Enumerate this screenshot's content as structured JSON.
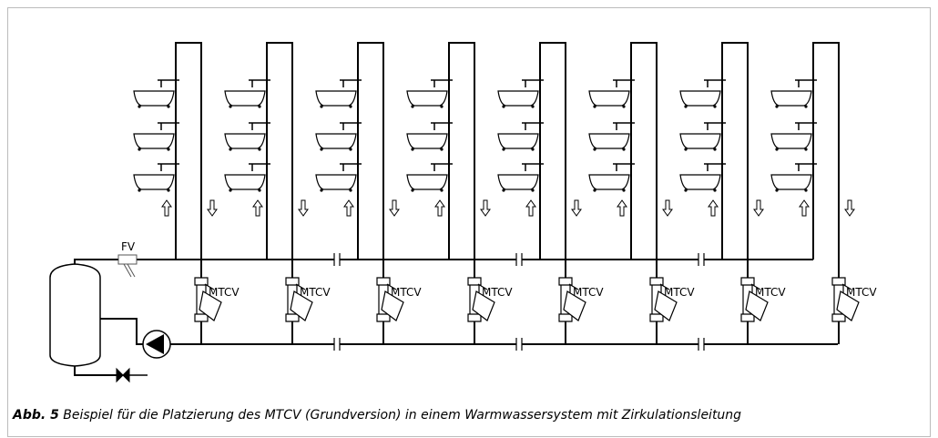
{
  "labels": {
    "fv": "FV",
    "valves": [
      "MTCV",
      "MTCV",
      "MTCV",
      "MTCV",
      "MTCV",
      "MTCV",
      "MTCV",
      "MTCV"
    ]
  },
  "caption": {
    "label": "Abb. 5",
    "text": "Beispiel für die Platzierung des MTCV (Grundversion) in einem Warmwassersystem mit Zirkulationsleitung"
  }
}
